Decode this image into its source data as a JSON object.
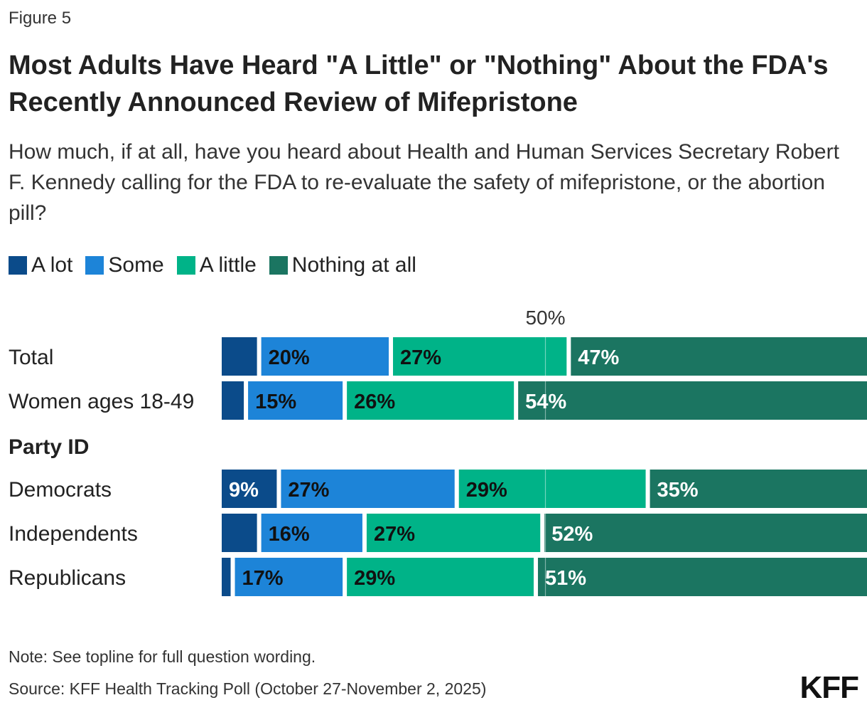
{
  "figure_label": "Figure 5",
  "title": "Most Adults Have Heard \"A Little\" or \"Nothing\" About the FDA's Recently Announced Review of Mifepristone",
  "subtitle": "How much, if at all, have you heard about Health and Human Services Secretary Robert F. Kennedy calling for the FDA to re-evaluate the safety of mifepristone, or the abortion pill?",
  "legend": [
    {
      "label": "A lot",
      "color": "#0b4b8a"
    },
    {
      "label": "Some",
      "color": "#1d84d8"
    },
    {
      "label": "A little",
      "color": "#00b388"
    },
    {
      "label": "Nothing at all",
      "color": "#1b7561"
    }
  ],
  "chart_data": {
    "type": "bar",
    "orientation": "horizontal",
    "stacked": true,
    "reference_line": {
      "value": 50,
      "label": "50%"
    },
    "categories": [
      "Total",
      "Women ages 18-49",
      "Democrats",
      "Independents",
      "Republicans"
    ],
    "group_header": {
      "label": "Party ID",
      "before": "Democrats"
    },
    "series": [
      {
        "name": "A lot",
        "values": [
          6,
          4,
          9,
          6,
          2
        ],
        "labels": [
          "",
          "",
          "9%",
          "",
          ""
        ]
      },
      {
        "name": "Some",
        "values": [
          20,
          15,
          27,
          16,
          17
        ],
        "labels": [
          "20%",
          "15%",
          "27%",
          "16%",
          "17%"
        ]
      },
      {
        "name": "A little",
        "values": [
          27,
          26,
          29,
          27,
          29
        ],
        "labels": [
          "27%",
          "26%",
          "29%",
          "27%",
          "29%"
        ]
      },
      {
        "name": "Nothing at all",
        "values": [
          47,
          54,
          35,
          52,
          51
        ],
        "labels": [
          "47%",
          "54%",
          "35%",
          "52%",
          "51%"
        ]
      }
    ]
  },
  "note": "Note: See topline for full question wording.",
  "source": "Source: KFF Health Tracking Poll (October 27-November 2, 2025)",
  "logo": "KFF"
}
